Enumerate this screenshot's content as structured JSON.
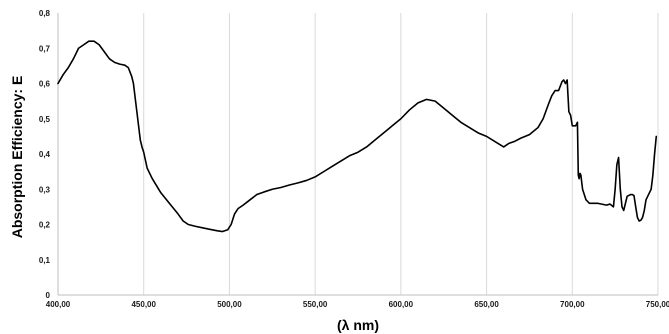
{
  "chart_data": {
    "type": "line",
    "xlabel": "(λ nm)",
    "ylabel": "Absorption Efficiency: E",
    "xlim": [
      400,
      750
    ],
    "ylim": [
      0,
      0.8
    ],
    "x_ticks": [
      400,
      450,
      500,
      550,
      600,
      650,
      700,
      750
    ],
    "x_tick_labels": [
      "400,00",
      "450,00",
      "500,00",
      "550,00",
      "600,00",
      "650,00",
      "700,00",
      "750,00"
    ],
    "y_ticks": [
      0,
      0.1,
      0.2,
      0.3,
      0.4,
      0.5,
      0.6,
      0.7,
      0.8
    ],
    "y_tick_labels": [
      "0",
      "0,1",
      "0,2",
      "0,3",
      "0,4",
      "0,5",
      "0,6",
      "0,7",
      "0,8"
    ],
    "grid": "vertical",
    "legend": "none",
    "colors": {
      "line": "#000000",
      "grid": "#d9d9d9"
    },
    "series": [
      {
        "x": [
          400,
          403,
          406,
          409,
          412,
          415,
          418,
          421,
          424,
          427,
          430,
          433,
          436,
          439,
          441,
          443,
          444,
          445,
          446,
          447,
          448,
          449,
          450,
          452,
          455,
          460,
          465,
          470,
          473,
          476,
          480,
          485,
          490,
          493,
          496,
          499,
          501,
          503,
          505,
          508,
          512,
          516,
          520,
          525,
          530,
          535,
          540,
          545,
          550,
          555,
          560,
          565,
          570,
          575,
          580,
          585,
          590,
          595,
          600,
          605,
          610,
          615,
          620,
          625,
          630,
          635,
          640,
          645,
          650,
          655,
          660,
          663,
          666,
          670,
          675,
          680,
          683,
          686,
          688,
          690,
          692,
          694,
          695,
          696,
          697,
          698,
          699,
          700,
          702,
          703,
          703.5,
          704,
          704.5,
          705,
          706,
          708,
          710,
          715,
          720,
          722,
          724,
          725,
          726,
          727,
          728,
          729,
          730,
          732,
          734,
          735,
          736,
          737,
          738,
          739,
          740,
          741,
          742,
          743,
          744,
          746,
          747,
          748,
          749
        ],
        "y": [
          0.6,
          0.625,
          0.645,
          0.67,
          0.7,
          0.71,
          0.72,
          0.72,
          0.71,
          0.69,
          0.67,
          0.66,
          0.655,
          0.652,
          0.645,
          0.62,
          0.6,
          0.56,
          0.52,
          0.48,
          0.44,
          0.42,
          0.405,
          0.36,
          0.33,
          0.29,
          0.26,
          0.23,
          0.21,
          0.2,
          0.195,
          0.19,
          0.185,
          0.182,
          0.18,
          0.185,
          0.2,
          0.23,
          0.245,
          0.255,
          0.27,
          0.285,
          0.292,
          0.3,
          0.305,
          0.312,
          0.318,
          0.325,
          0.335,
          0.35,
          0.365,
          0.38,
          0.395,
          0.405,
          0.42,
          0.44,
          0.46,
          0.48,
          0.5,
          0.525,
          0.545,
          0.555,
          0.55,
          0.53,
          0.51,
          0.49,
          0.475,
          0.46,
          0.45,
          0.435,
          0.42,
          0.43,
          0.435,
          0.445,
          0.455,
          0.475,
          0.5,
          0.54,
          0.565,
          0.58,
          0.58,
          0.605,
          0.61,
          0.6,
          0.61,
          0.52,
          0.51,
          0.48,
          0.48,
          0.49,
          0.34,
          0.33,
          0.345,
          0.34,
          0.3,
          0.27,
          0.26,
          0.26,
          0.255,
          0.258,
          0.25,
          0.3,
          0.37,
          0.39,
          0.3,
          0.25,
          0.24,
          0.28,
          0.285,
          0.285,
          0.282,
          0.25,
          0.22,
          0.21,
          0.212,
          0.22,
          0.24,
          0.27,
          0.28,
          0.3,
          0.34,
          0.4,
          0.45
        ]
      }
    ]
  }
}
